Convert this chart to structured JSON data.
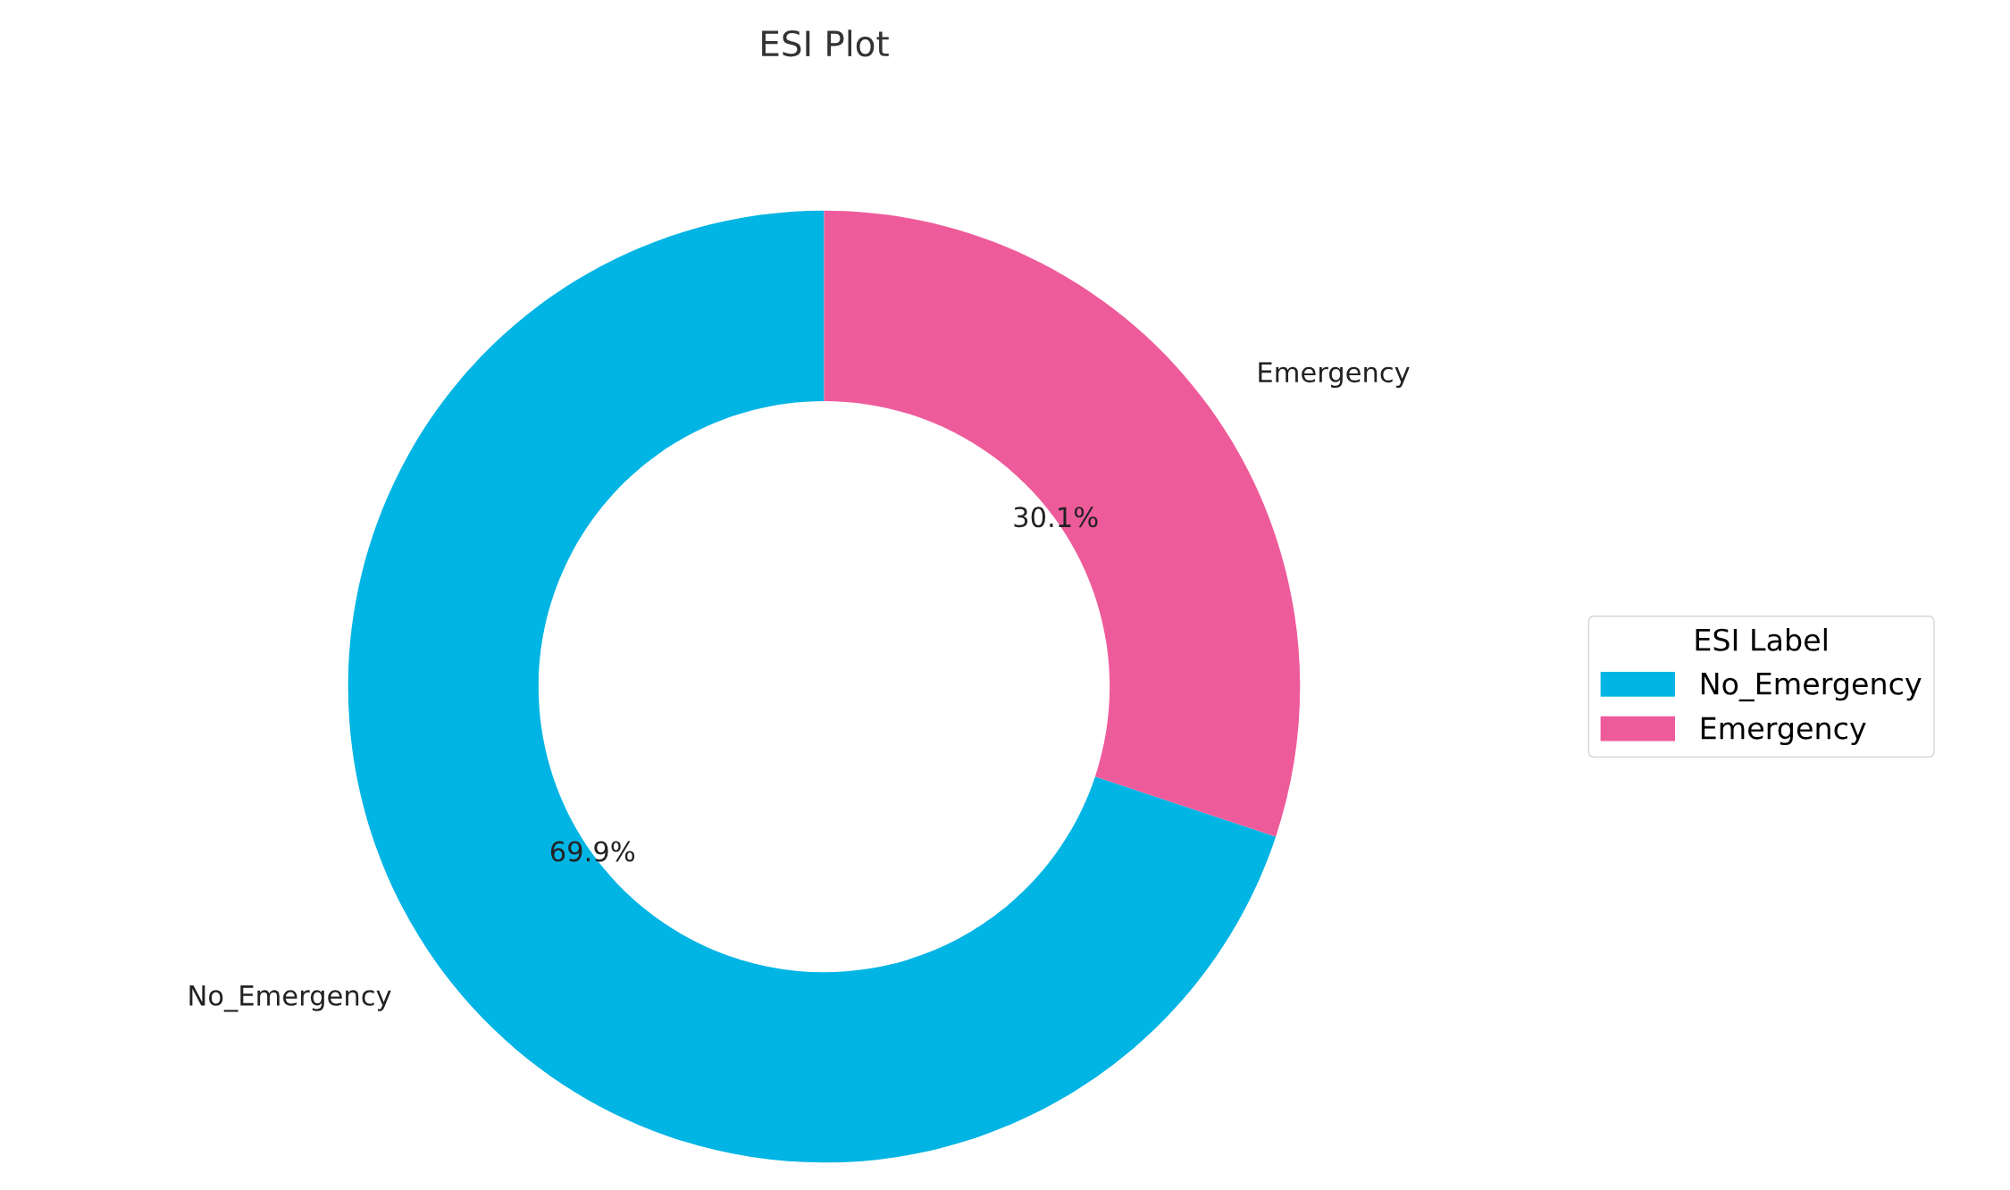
{
  "chart_data": {
    "type": "donut",
    "title": "ESI Plot",
    "categories": [
      "No_Emergency",
      "Emergency"
    ],
    "values": [
      69.9,
      30.1
    ],
    "colors": [
      "#00b4e4",
      "#ee5b9b"
    ],
    "value_labels": [
      "69.9%",
      "30.1%"
    ],
    "legend_title": "ESI Label",
    "legend": "right"
  }
}
